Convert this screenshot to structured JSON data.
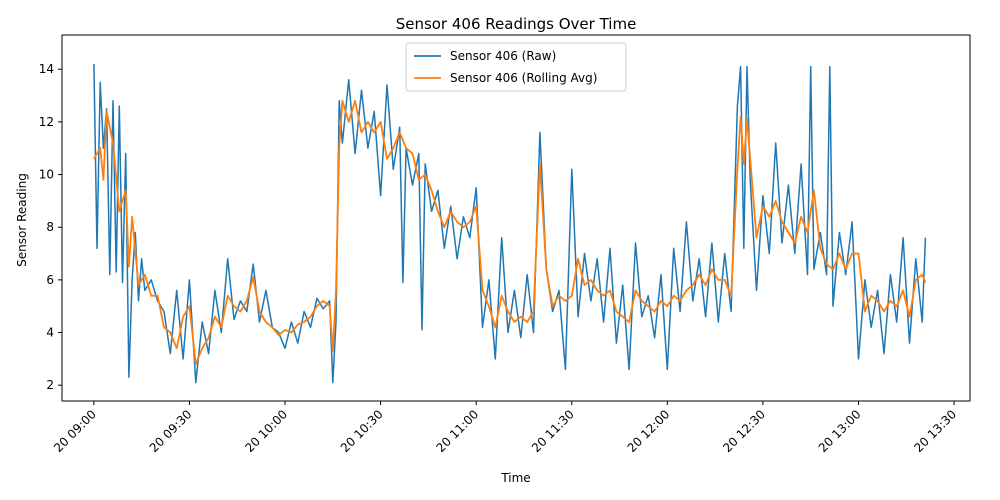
{
  "chart_data": {
    "type": "line",
    "title": "Sensor 406 Readings Over Time",
    "xlabel": "Time",
    "ylabel": "Sensor Reading",
    "x_axis": {
      "kind": "time",
      "range": [
        "20 08:50",
        "20 13:35"
      ],
      "ticks": [
        "20 09:00",
        "20 09:30",
        "20 10:00",
        "20 10:30",
        "20 11:00",
        "20 11:30",
        "20 12:00",
        "20 12:30",
        "20 13:00",
        "20 13:30"
      ]
    },
    "y_axis": {
      "range": [
        1.4,
        15.3
      ],
      "ticks": [
        2,
        4,
        6,
        8,
        10,
        12,
        14
      ]
    },
    "grid": false,
    "legend": {
      "placement": "top-center"
    },
    "series": [
      {
        "name": "Sensor 406 (Raw)",
        "color": "#1f77b4",
        "points": [
          [
            "20 09:00",
            14.2
          ],
          [
            "20 09:01",
            7.2
          ],
          [
            "20 09:02",
            13.5
          ],
          [
            "20 09:03",
            11.0
          ],
          [
            "20 09:04",
            12.5
          ],
          [
            "20 09:05",
            6.2
          ],
          [
            "20 09:06",
            12.8
          ],
          [
            "20 09:07",
            6.3
          ],
          [
            "20 09:08",
            12.6
          ],
          [
            "20 09:09",
            5.9
          ],
          [
            "20 09:10",
            10.8
          ],
          [
            "20 09:11",
            2.3
          ],
          [
            "20 09:12",
            6.0
          ],
          [
            "20 09:13",
            7.8
          ],
          [
            "20 09:14",
            5.2
          ],
          [
            "20 09:15",
            6.8
          ],
          [
            "20 09:16",
            5.6
          ],
          [
            "20 09:18",
            6.0
          ],
          [
            "20 09:20",
            5.2
          ],
          [
            "20 09:22",
            4.8
          ],
          [
            "20 09:24",
            3.2
          ],
          [
            "20 09:26",
            5.6
          ],
          [
            "20 09:28",
            3.0
          ],
          [
            "20 09:30",
            6.0
          ],
          [
            "20 09:32",
            2.1
          ],
          [
            "20 09:34",
            4.4
          ],
          [
            "20 09:36",
            3.2
          ],
          [
            "20 09:38",
            5.6
          ],
          [
            "20 09:40",
            4.0
          ],
          [
            "20 09:42",
            6.8
          ],
          [
            "20 09:44",
            4.5
          ],
          [
            "20 09:46",
            5.2
          ],
          [
            "20 09:48",
            4.8
          ],
          [
            "20 09:50",
            6.6
          ],
          [
            "20 09:52",
            4.4
          ],
          [
            "20 09:54",
            5.6
          ],
          [
            "20 09:56",
            4.2
          ],
          [
            "20 09:58",
            4.0
          ],
          [
            "20 10:00",
            3.4
          ],
          [
            "20 10:02",
            4.4
          ],
          [
            "20 10:04",
            3.6
          ],
          [
            "20 10:06",
            4.8
          ],
          [
            "20 10:08",
            4.2
          ],
          [
            "20 10:10",
            5.3
          ],
          [
            "20 10:12",
            4.9
          ],
          [
            "20 10:14",
            5.2
          ],
          [
            "20 10:15",
            2.1
          ],
          [
            "20 10:16",
            4.4
          ],
          [
            "20 10:17",
            12.8
          ],
          [
            "20 10:18",
            11.2
          ],
          [
            "20 10:20",
            13.6
          ],
          [
            "20 10:22",
            10.8
          ],
          [
            "20 10:24",
            13.2
          ],
          [
            "20 10:26",
            11.0
          ],
          [
            "20 10:28",
            12.4
          ],
          [
            "20 10:30",
            9.2
          ],
          [
            "20 10:32",
            13.4
          ],
          [
            "20 10:34",
            10.2
          ],
          [
            "20 10:36",
            11.8
          ],
          [
            "20 10:37",
            5.9
          ],
          [
            "20 10:38",
            11.0
          ],
          [
            "20 10:40",
            9.6
          ],
          [
            "20 10:42",
            10.8
          ],
          [
            "20 10:43",
            4.1
          ],
          [
            "20 10:44",
            10.4
          ],
          [
            "20 10:46",
            8.6
          ],
          [
            "20 10:48",
            9.4
          ],
          [
            "20 10:50",
            7.2
          ],
          [
            "20 10:52",
            8.8
          ],
          [
            "20 10:54",
            6.8
          ],
          [
            "20 10:56",
            8.4
          ],
          [
            "20 10:58",
            7.6
          ],
          [
            "20 11:00",
            9.5
          ],
          [
            "20 11:02",
            4.2
          ],
          [
            "20 11:04",
            6.0
          ],
          [
            "20 11:06",
            3.0
          ],
          [
            "20 11:08",
            7.6
          ],
          [
            "20 11:10",
            4.0
          ],
          [
            "20 11:12",
            5.6
          ],
          [
            "20 11:14",
            3.8
          ],
          [
            "20 11:16",
            6.2
          ],
          [
            "20 11:18",
            4.0
          ],
          [
            "20 11:20",
            11.6
          ],
          [
            "20 11:22",
            6.4
          ],
          [
            "20 11:24",
            4.8
          ],
          [
            "20 11:26",
            5.6
          ],
          [
            "20 11:28",
            2.6
          ],
          [
            "20 11:30",
            10.2
          ],
          [
            "20 11:32",
            4.6
          ],
          [
            "20 11:34",
            7.0
          ],
          [
            "20 11:36",
            5.2
          ],
          [
            "20 11:38",
            6.8
          ],
          [
            "20 11:40",
            4.4
          ],
          [
            "20 11:42",
            7.2
          ],
          [
            "20 11:44",
            3.6
          ],
          [
            "20 11:46",
            5.8
          ],
          [
            "20 11:48",
            2.6
          ],
          [
            "20 11:50",
            7.4
          ],
          [
            "20 11:52",
            4.6
          ],
          [
            "20 11:54",
            5.4
          ],
          [
            "20 11:56",
            3.8
          ],
          [
            "20 11:58",
            6.2
          ],
          [
            "20 12:00",
            2.6
          ],
          [
            "20 12:02",
            7.2
          ],
          [
            "20 12:04",
            4.8
          ],
          [
            "20 12:06",
            8.2
          ],
          [
            "20 12:08",
            5.2
          ],
          [
            "20 12:10",
            6.8
          ],
          [
            "20 12:12",
            4.6
          ],
          [
            "20 12:14",
            7.4
          ],
          [
            "20 12:16",
            4.4
          ],
          [
            "20 12:18",
            7.0
          ],
          [
            "20 12:20",
            4.8
          ],
          [
            "20 12:22",
            12.6
          ],
          [
            "20 12:23",
            14.1
          ],
          [
            "20 12:24",
            7.2
          ],
          [
            "20 12:25",
            14.1
          ],
          [
            "20 12:26",
            9.8
          ],
          [
            "20 12:28",
            5.6
          ],
          [
            "20 12:30",
            9.2
          ],
          [
            "20 12:32",
            7.0
          ],
          [
            "20 12:34",
            11.2
          ],
          [
            "20 12:36",
            7.4
          ],
          [
            "20 12:38",
            9.6
          ],
          [
            "20 12:40",
            7.0
          ],
          [
            "20 12:42",
            10.4
          ],
          [
            "20 12:44",
            6.2
          ],
          [
            "20 12:45",
            14.1
          ],
          [
            "20 12:46",
            6.4
          ],
          [
            "20 12:48",
            7.8
          ],
          [
            "20 12:50",
            6.2
          ],
          [
            "20 12:51",
            14.1
          ],
          [
            "20 12:52",
            5.0
          ],
          [
            "20 12:54",
            7.8
          ],
          [
            "20 12:56",
            6.2
          ],
          [
            "20 12:58",
            8.2
          ],
          [
            "20 13:00",
            3.0
          ],
          [
            "20 13:02",
            6.0
          ],
          [
            "20 13:04",
            4.2
          ],
          [
            "20 13:06",
            5.6
          ],
          [
            "20 13:08",
            3.2
          ],
          [
            "20 13:10",
            6.2
          ],
          [
            "20 13:12",
            4.4
          ],
          [
            "20 13:14",
            7.6
          ],
          [
            "20 13:16",
            3.6
          ],
          [
            "20 13:18",
            6.8
          ],
          [
            "20 13:20",
            4.4
          ],
          [
            "20 13:21",
            7.6
          ]
        ]
      },
      {
        "name": "Sensor 406 (Rolling Avg)",
        "color": "#ff7f0e",
        "points": [
          [
            "20 09:00",
            10.6
          ],
          [
            "20 09:02",
            11.0
          ],
          [
            "20 09:03",
            9.8
          ],
          [
            "20 09:04",
            12.4
          ],
          [
            "20 09:06",
            11.2
          ],
          [
            "20 09:08",
            8.6
          ],
          [
            "20 09:10",
            9.4
          ],
          [
            "20 09:11",
            6.5
          ],
          [
            "20 09:12",
            8.4
          ],
          [
            "20 09:14",
            5.8
          ],
          [
            "20 09:16",
            6.2
          ],
          [
            "20 09:18",
            5.4
          ],
          [
            "20 09:20",
            5.4
          ],
          [
            "20 09:22",
            4.2
          ],
          [
            "20 09:24",
            4.0
          ],
          [
            "20 09:26",
            3.4
          ],
          [
            "20 09:28",
            4.6
          ],
          [
            "20 09:30",
            5.0
          ],
          [
            "20 09:32",
            2.8
          ],
          [
            "20 09:34",
            3.4
          ],
          [
            "20 09:36",
            3.8
          ],
          [
            "20 09:38",
            4.6
          ],
          [
            "20 09:40",
            4.2
          ],
          [
            "20 09:42",
            5.4
          ],
          [
            "20 09:44",
            5.0
          ],
          [
            "20 09:46",
            4.8
          ],
          [
            "20 09:48",
            5.2
          ],
          [
            "20 09:50",
            6.1
          ],
          [
            "20 09:52",
            4.8
          ],
          [
            "20 09:54",
            4.4
          ],
          [
            "20 09:56",
            4.2
          ],
          [
            "20 09:58",
            3.9
          ],
          [
            "20 10:00",
            4.1
          ],
          [
            "20 10:02",
            4.0
          ],
          [
            "20 10:04",
            4.3
          ],
          [
            "20 10:06",
            4.4
          ],
          [
            "20 10:08",
            4.6
          ],
          [
            "20 10:10",
            5.0
          ],
          [
            "20 10:12",
            5.2
          ],
          [
            "20 10:14",
            5.0
          ],
          [
            "20 10:15",
            3.3
          ],
          [
            "20 10:16",
            5.6
          ],
          [
            "20 10:17",
            11.0
          ],
          [
            "20 10:18",
            12.8
          ],
          [
            "20 10:20",
            12.0
          ],
          [
            "20 10:22",
            12.8
          ],
          [
            "20 10:24",
            11.6
          ],
          [
            "20 10:26",
            12.0
          ],
          [
            "20 10:28",
            11.6
          ],
          [
            "20 10:30",
            12.0
          ],
          [
            "20 10:32",
            10.6
          ],
          [
            "20 10:34",
            11.0
          ],
          [
            "20 10:36",
            11.6
          ],
          [
            "20 10:38",
            11.0
          ],
          [
            "20 10:40",
            10.8
          ],
          [
            "20 10:42",
            9.8
          ],
          [
            "20 10:44",
            10.0
          ],
          [
            "20 10:46",
            9.4
          ],
          [
            "20 10:48",
            8.6
          ],
          [
            "20 10:50",
            8.0
          ],
          [
            "20 10:52",
            8.6
          ],
          [
            "20 10:54",
            8.2
          ],
          [
            "20 10:56",
            8.0
          ],
          [
            "20 10:58",
            8.2
          ],
          [
            "20 11:00",
            8.8
          ],
          [
            "20 11:02",
            5.6
          ],
          [
            "20 11:04",
            5.0
          ],
          [
            "20 11:06",
            4.2
          ],
          [
            "20 11:08",
            5.4
          ],
          [
            "20 11:10",
            4.8
          ],
          [
            "20 11:12",
            4.4
          ],
          [
            "20 11:14",
            4.6
          ],
          [
            "20 11:16",
            4.4
          ],
          [
            "20 11:18",
            4.8
          ],
          [
            "20 11:20",
            10.4
          ],
          [
            "20 11:22",
            6.4
          ],
          [
            "20 11:24",
            5.0
          ],
          [
            "20 11:26",
            5.4
          ],
          [
            "20 11:28",
            5.2
          ],
          [
            "20 11:30",
            5.4
          ],
          [
            "20 11:32",
            6.8
          ],
          [
            "20 11:34",
            5.8
          ],
          [
            "20 11:36",
            6.0
          ],
          [
            "20 11:38",
            5.6
          ],
          [
            "20 11:40",
            5.4
          ],
          [
            "20 11:42",
            5.6
          ],
          [
            "20 11:44",
            4.8
          ],
          [
            "20 11:46",
            4.6
          ],
          [
            "20 11:48",
            4.4
          ],
          [
            "20 11:50",
            5.6
          ],
          [
            "20 11:52",
            5.2
          ],
          [
            "20 11:54",
            5.0
          ],
          [
            "20 11:56",
            4.8
          ],
          [
            "20 11:58",
            5.2
          ],
          [
            "20 12:00",
            5.0
          ],
          [
            "20 12:02",
            5.4
          ],
          [
            "20 12:04",
            5.2
          ],
          [
            "20 12:06",
            5.6
          ],
          [
            "20 12:08",
            5.8
          ],
          [
            "20 12:10",
            6.2
          ],
          [
            "20 12:12",
            5.8
          ],
          [
            "20 12:14",
            6.4
          ],
          [
            "20 12:16",
            6.0
          ],
          [
            "20 12:18",
            6.0
          ],
          [
            "20 12:20",
            5.4
          ],
          [
            "20 12:22",
            10.2
          ],
          [
            "20 12:23",
            12.2
          ],
          [
            "20 12:24",
            10.4
          ],
          [
            "20 12:25",
            12.1
          ],
          [
            "20 12:26",
            10.6
          ],
          [
            "20 12:28",
            7.6
          ],
          [
            "20 12:30",
            8.8
          ],
          [
            "20 12:32",
            8.4
          ],
          [
            "20 12:34",
            9.0
          ],
          [
            "20 12:36",
            8.2
          ],
          [
            "20 12:38",
            7.8
          ],
          [
            "20 12:40",
            7.4
          ],
          [
            "20 12:42",
            8.4
          ],
          [
            "20 12:44",
            7.8
          ],
          [
            "20 12:46",
            9.4
          ],
          [
            "20 12:48",
            7.2
          ],
          [
            "20 12:50",
            6.6
          ],
          [
            "20 12:52",
            6.4
          ],
          [
            "20 12:54",
            7.0
          ],
          [
            "20 12:56",
            6.4
          ],
          [
            "20 12:58",
            7.0
          ],
          [
            "20 13:00",
            7.0
          ],
          [
            "20 13:02",
            4.8
          ],
          [
            "20 13:04",
            5.4
          ],
          [
            "20 13:06",
            5.2
          ],
          [
            "20 13:08",
            4.8
          ],
          [
            "20 13:10",
            5.2
          ],
          [
            "20 13:12",
            5.0
          ],
          [
            "20 13:14",
            5.6
          ],
          [
            "20 13:16",
            4.6
          ],
          [
            "20 13:18",
            6.0
          ],
          [
            "20 13:20",
            6.2
          ],
          [
            "20 13:21",
            5.9
          ]
        ]
      }
    ]
  }
}
